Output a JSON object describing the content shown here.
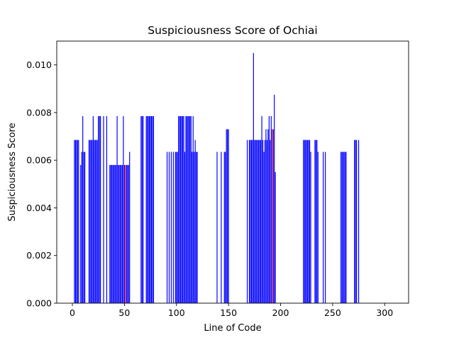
{
  "chart_data": {
    "type": "bar",
    "title": "Suspiciousness Score of Ochiai",
    "xlabel": "Line of Code",
    "ylabel": "Suspiciousness Score",
    "xlim": [
      -15,
      323
    ],
    "ylim": [
      0,
      0.011
    ],
    "xticks": [
      0,
      50,
      100,
      150,
      200,
      250,
      300
    ],
    "yticks": [
      0.0,
      0.002,
      0.004,
      0.006,
      0.008,
      0.01
    ],
    "ytick_labels": [
      "0.000",
      "0.002",
      "0.004",
      "0.006",
      "0.008",
      "0.010"
    ],
    "grid": false,
    "colors": {
      "normal": "#0000ff",
      "highlight": "#ff0000"
    },
    "bars": [
      {
        "x": 2,
        "y": 0.00685
      },
      {
        "x": 3,
        "y": 0.00685
      },
      {
        "x": 4,
        "y": 0.00685
      },
      {
        "x": 5,
        "y": 0.00685
      },
      {
        "x": 6,
        "y": 0.00685
      },
      {
        "x": 8,
        "y": 0.0058
      },
      {
        "x": 9,
        "y": 0.00635
      },
      {
        "x": 10,
        "y": 0.00785
      },
      {
        "x": 11,
        "y": 0.00635
      },
      {
        "x": 12,
        "y": 0.00635
      },
      {
        "x": 16,
        "y": 0.00685
      },
      {
        "x": 17,
        "y": 0.00685
      },
      {
        "x": 18,
        "y": 0.00685
      },
      {
        "x": 19,
        "y": 0.00685
      },
      {
        "x": 20,
        "y": 0.00785
      },
      {
        "x": 21,
        "y": 0.00685
      },
      {
        "x": 22,
        "y": 0.00685
      },
      {
        "x": 23,
        "y": 0.00685
      },
      {
        "x": 24,
        "y": 0.00685
      },
      {
        "x": 25,
        "y": 0.00785
      },
      {
        "x": 26,
        "y": 0.00785
      },
      {
        "x": 27,
        "y": 0.00785
      },
      {
        "x": 30,
        "y": 0.00785
      },
      {
        "x": 33,
        "y": 0.00785
      },
      {
        "x": 36,
        "y": 0.0058
      },
      {
        "x": 37,
        "y": 0.0058
      },
      {
        "x": 38,
        "y": 0.0058
      },
      {
        "x": 39,
        "y": 0.0058
      },
      {
        "x": 40,
        "y": 0.0058
      },
      {
        "x": 41,
        "y": 0.0058
      },
      {
        "x": 42,
        "y": 0.0058
      },
      {
        "x": 43,
        "y": 0.00785
      },
      {
        "x": 44,
        "y": 0.0058
      },
      {
        "x": 45,
        "y": 0.0058
      },
      {
        "x": 46,
        "y": 0.0058
      },
      {
        "x": 47,
        "y": 0.0058
      },
      {
        "x": 48,
        "y": 0.0058
      },
      {
        "x": 49,
        "y": 0.00785
      },
      {
        "x": 50,
        "y": 0.0058
      },
      {
        "x": 51,
        "y": 0.0058,
        "highlight": true
      },
      {
        "x": 52,
        "y": 0.0058
      },
      {
        "x": 53,
        "y": 0.0058
      },
      {
        "x": 54,
        "y": 0.0058
      },
      {
        "x": 55,
        "y": 0.00635
      },
      {
        "x": 66,
        "y": 0.00785
      },
      {
        "x": 67,
        "y": 0.00785
      },
      {
        "x": 68,
        "y": 0.00785
      },
      {
        "x": 71,
        "y": 0.00785
      },
      {
        "x": 72,
        "y": 0.00785
      },
      {
        "x": 73,
        "y": 0.00785
      },
      {
        "x": 74,
        "y": 0.00785
      },
      {
        "x": 75,
        "y": 0.00785
      },
      {
        "x": 76,
        "y": 0.00785
      },
      {
        "x": 77,
        "y": 0.00785
      },
      {
        "x": 78,
        "y": 0.00785
      },
      {
        "x": 91,
        "y": 0.00635
      },
      {
        "x": 93,
        "y": 0.00635
      },
      {
        "x": 95,
        "y": 0.00635
      },
      {
        "x": 97,
        "y": 0.00635
      },
      {
        "x": 99,
        "y": 0.00635
      },
      {
        "x": 100,
        "y": 0.00635
      },
      {
        "x": 101,
        "y": 0.00635
      },
      {
        "x": 102,
        "y": 0.00785
      },
      {
        "x": 103,
        "y": 0.00785
      },
      {
        "x": 104,
        "y": 0.00785
      },
      {
        "x": 105,
        "y": 0.00785
      },
      {
        "x": 106,
        "y": 0.00785
      },
      {
        "x": 107,
        "y": 0.00785
      },
      {
        "x": 108,
        "y": 0.00635
      },
      {
        "x": 109,
        "y": 0.00785
      },
      {
        "x": 110,
        "y": 0.00785
      },
      {
        "x": 111,
        "y": 0.00785
      },
      {
        "x": 112,
        "y": 0.00785
      },
      {
        "x": 113,
        "y": 0.00785
      },
      {
        "x": 114,
        "y": 0.00785
      },
      {
        "x": 115,
        "y": 0.00635
      },
      {
        "x": 116,
        "y": 0.00785
      },
      {
        "x": 117,
        "y": 0.00635
      },
      {
        "x": 118,
        "y": 0.00685
      },
      {
        "x": 119,
        "y": 0.00635
      },
      {
        "x": 120,
        "y": 0.00635
      },
      {
        "x": 139,
        "y": 0.00635
      },
      {
        "x": 143,
        "y": 0.00635
      },
      {
        "x": 146,
        "y": 0.00635
      },
      {
        "x": 147,
        "y": 0.00635
      },
      {
        "x": 148,
        "y": 0.0073
      },
      {
        "x": 149,
        "y": 0.0073
      },
      {
        "x": 150,
        "y": 0.0073
      },
      {
        "x": 168,
        "y": 0.00685
      },
      {
        "x": 170,
        "y": 0.00685
      },
      {
        "x": 171,
        "y": 0.00685
      },
      {
        "x": 172,
        "y": 0.00685
      },
      {
        "x": 173,
        "y": 0.00685
      },
      {
        "x": 174,
        "y": 0.0105
      },
      {
        "x": 175,
        "y": 0.00685
      },
      {
        "x": 176,
        "y": 0.00685
      },
      {
        "x": 177,
        "y": 0.00685
      },
      {
        "x": 178,
        "y": 0.00685
      },
      {
        "x": 179,
        "y": 0.00685
      },
      {
        "x": 180,
        "y": 0.00685
      },
      {
        "x": 181,
        "y": 0.00685
      },
      {
        "x": 182,
        "y": 0.00785
      },
      {
        "x": 183,
        "y": 0.00685
      },
      {
        "x": 184,
        "y": 0.00635
      },
      {
        "x": 185,
        "y": 0.00685
      },
      {
        "x": 186,
        "y": 0.0073
      },
      {
        "x": 187,
        "y": 0.00685
      },
      {
        "x": 188,
        "y": 0.0073
      },
      {
        "x": 189,
        "y": 0.00785
      },
      {
        "x": 190,
        "y": 0.00685
      },
      {
        "x": 191,
        "y": 0.00785
      },
      {
        "x": 192,
        "y": 0.0073,
        "highlight": true
      },
      {
        "x": 193,
        "y": 0.0073
      },
      {
        "x": 194,
        "y": 0.00875
      },
      {
        "x": 195,
        "y": 0.0055
      },
      {
        "x": 222,
        "y": 0.00685
      },
      {
        "x": 223,
        "y": 0.00685
      },
      {
        "x": 224,
        "y": 0.00685
      },
      {
        "x": 225,
        "y": 0.00685
      },
      {
        "x": 226,
        "y": 0.00685
      },
      {
        "x": 227,
        "y": 0.00685
      },
      {
        "x": 228,
        "y": 0.00685
      },
      {
        "x": 229,
        "y": 0.00635
      },
      {
        "x": 233,
        "y": 0.00685
      },
      {
        "x": 234,
        "y": 0.00685
      },
      {
        "x": 235,
        "y": 0.00685
      },
      {
        "x": 236,
        "y": 0.00635
      },
      {
        "x": 241,
        "y": 0.00635
      },
      {
        "x": 243,
        "y": 0.00635
      },
      {
        "x": 258,
        "y": 0.00635
      },
      {
        "x": 259,
        "y": 0.00635
      },
      {
        "x": 260,
        "y": 0.00635
      },
      {
        "x": 261,
        "y": 0.00635
      },
      {
        "x": 262,
        "y": 0.00635
      },
      {
        "x": 263,
        "y": 0.00635
      },
      {
        "x": 271,
        "y": 0.00685
      },
      {
        "x": 272,
        "y": 0.00685
      },
      {
        "x": 273,
        "y": 0.00685
      },
      {
        "x": 275,
        "y": 0.00685
      }
    ]
  }
}
